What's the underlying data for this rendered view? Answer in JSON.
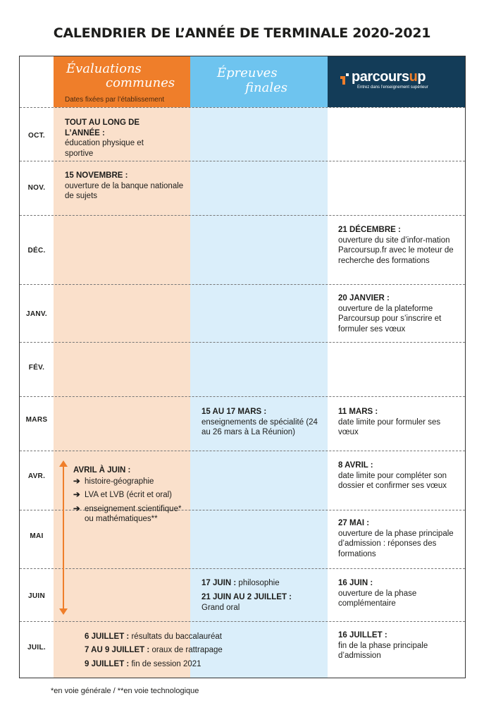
{
  "title": "CALENDRIER DE L’ANNÉE DE TERMINALE 2020-2021",
  "headers": {
    "col1_line1": "Évaluations",
    "col1_line2": "communes",
    "col1_sub": "Dates fixées par l’établissement",
    "col2_line1": "Épreuves",
    "col2_line2": "finales",
    "logo_pre": "parcours",
    "logo_mid": "u",
    "logo_post": "p",
    "logo_sub": "Entrez dans l’enseignement supérieur",
    "logo_icon": "parcoursup-logo-mark"
  },
  "colors": {
    "orange": "#ef7e2a",
    "light_orange": "#fae0cb",
    "blue": "#6ec4ef",
    "light_blue": "#daeefa",
    "navy": "#133c58"
  },
  "months": [
    "OCT.",
    "NOV.",
    "DÉC.",
    "JANV.",
    "FÉV.",
    "MARS",
    "AVR.",
    "MAI",
    "JUIN",
    "JUIL."
  ],
  "col1": {
    "oct_bold": "TOUT AU LONG DE L’ANNÉE :",
    "oct_text": "éducation physique et sportive",
    "nov_bold": "15 NOVEMBRE :",
    "nov_text": "ouverture de la banque nationale de sujets",
    "avr_bold": "AVRIL À JUIN :",
    "avr_items": [
      "histoire-géographie",
      "LVA et LVB (écrit et oral)",
      "enseignement scientifique* ou mathématiques**"
    ],
    "bullet_icon": "arrow-right-icon"
  },
  "col2": {
    "mars_bold": "15 AU 17 MARS :",
    "mars_text": "enseignements de spécialité (24 au 26 mars à La Réunion)",
    "juin1_bold": "17 JUIN :",
    "juin1_text": "philosophie",
    "juin2_bold": "21 JUIN AU 2 JUILLET :",
    "juin2_text": "Grand oral"
  },
  "juil": {
    "l1_bold": "6 JUILLET :",
    "l1_text": "résultats du baccalauréat",
    "l2_bold": "7 AU 9 JUILLET :",
    "l2_text": "oraux de rattrapage",
    "l3_bold": "9 JUILLET :",
    "l3_text": "fin de session 2021"
  },
  "col3": {
    "dec_bold": "21 DÉCEMBRE :",
    "dec_text": "ouverture du site d’infor-mation Parcoursup.fr avec le moteur de recherche des formations",
    "janv_bold": "20 JANVIER :",
    "janv_text": "ouverture de la plateforme Parcoursup pour s’inscrire et formuler ses vœux",
    "mars_bold": "11 MARS :",
    "mars_text": "date limite pour formuler ses vœux",
    "avr_bold": "8 AVRIL :",
    "avr_text": "date limite pour compléter son dossier et confirmer ses vœux",
    "mai_bold": "27 MAI :",
    "mai_text": "ouverture de la phase principale d’admission : réponses des formations",
    "juin_bold": "16 JUIN :",
    "juin_text": "ouverture de la phase complémentaire",
    "juil_bold": "16 JUILLET :",
    "juil_text": "fin de la phase principale d’admission"
  },
  "footnote": "*en voie générale / **en voie technologique"
}
